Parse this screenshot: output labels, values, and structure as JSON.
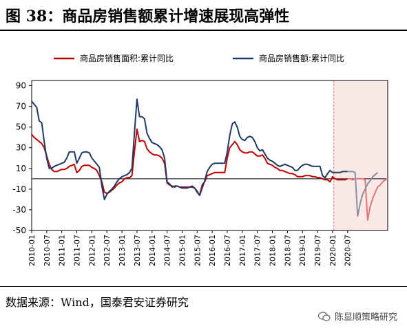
{
  "title": "图 38：商品房销售额累计增速展现高弹性",
  "source": "数据来源：Wind，国泰君安证券研究",
  "watermark": "陈显顺策略研究",
  "colors": {
    "area": "#c00000",
    "sales": "#1f3864",
    "forecast": "#8a8fa0",
    "highlight": "#fbe9e7"
  },
  "chart_data": {
    "type": "line",
    "ylim": [
      -50,
      95
    ],
    "yticks": [
      90,
      70,
      50,
      30,
      10,
      -10,
      -30,
      -50
    ],
    "xlabels": [
      "2010-01",
      "2010-07",
      "2011-01",
      "2011-07",
      "2012-01",
      "2012-07",
      "2013-01",
      "2013-07",
      "2014-01",
      "2014-07",
      "2015-01",
      "2015-07",
      "2016-01",
      "2016-07",
      "2017-01",
      "2017-07",
      "2018-01",
      "2018-07",
      "2019-01",
      "2019-07",
      "2020-01",
      "2020-07"
    ],
    "x_start": "2010-01",
    "highlight_from": "2020-02",
    "legend_position": "top",
    "series": [
      {
        "name": "商品房销售面积:累计同比",
        "color": "#c00000",
        "values": [
          43,
          40,
          38,
          36,
          34,
          30,
          22,
          14,
          9,
          7,
          7,
          8,
          9,
          9,
          10,
          12,
          13,
          14,
          6,
          8,
          12,
          13,
          13,
          13,
          11,
          10,
          8,
          3,
          -3,
          -13,
          -14,
          -13,
          -11,
          -9,
          -6,
          -4,
          -3,
          0,
          1,
          1,
          3,
          27,
          48,
          36,
          37,
          36,
          29,
          26,
          24,
          23,
          23,
          22,
          20,
          15,
          -4,
          -6,
          -7,
          -8,
          -7,
          -8,
          -8,
          -8,
          -8,
          -8,
          -7,
          -9,
          -12,
          -16,
          -6,
          -3,
          3,
          4,
          5,
          6,
          6,
          6,
          6,
          6,
          20,
          30,
          33,
          36,
          33,
          28,
          26,
          25,
          25,
          26,
          26,
          24,
          22,
          22,
          23,
          20,
          15,
          14,
          13,
          11,
          10,
          8,
          8,
          7,
          6,
          5,
          5,
          4,
          2,
          2,
          2,
          3,
          3,
          3,
          2,
          2,
          1,
          1,
          0,
          -1,
          -1,
          -3,
          2,
          0,
          -1,
          -1,
          -1,
          -1,
          0,
          0,
          -1,
          0,
          0,
          0,
          0,
          -1,
          -40,
          -27,
          -19,
          -13,
          -8,
          -6,
          -3,
          -1,
          0
        ],
        "forecast_from": 126
      },
      {
        "name": "商品房销售额:累计同比",
        "color": "#1f3864",
        "values": [
          75,
          72,
          69,
          56,
          54,
          36,
          20,
          10,
          10,
          12,
          13,
          14,
          15,
          16,
          20,
          26,
          26,
          26,
          15,
          20,
          25,
          26,
          26,
          25,
          20,
          17,
          14,
          11,
          -7,
          -20,
          -15,
          -12,
          -10,
          -7,
          -3,
          0,
          2,
          3,
          4,
          6,
          10,
          45,
          77,
          60,
          60,
          58,
          44,
          39,
          35,
          34,
          33,
          31,
          28,
          20,
          -3,
          -5,
          -8,
          -7,
          -7,
          -8,
          -9,
          -9,
          -9,
          -8,
          -8,
          -9,
          -13,
          -16,
          -9,
          -2,
          7,
          11,
          14,
          15,
          15,
          15,
          15,
          15,
          26,
          42,
          53,
          55,
          50,
          41,
          38,
          37,
          40,
          41,
          40,
          36,
          30,
          27,
          28,
          24,
          20,
          18,
          17,
          15,
          13,
          12,
          13,
          14,
          13,
          12,
          11,
          8,
          8,
          11,
          13,
          14,
          14,
          13,
          12,
          12,
          12,
          12,
          3,
          1,
          5,
          8,
          6,
          6,
          6,
          6,
          7,
          7,
          7,
          7,
          7,
          6,
          -36,
          -24,
          -15,
          -10,
          -5,
          -2,
          2,
          4,
          6
        ],
        "forecast_from": 126
      }
    ]
  }
}
